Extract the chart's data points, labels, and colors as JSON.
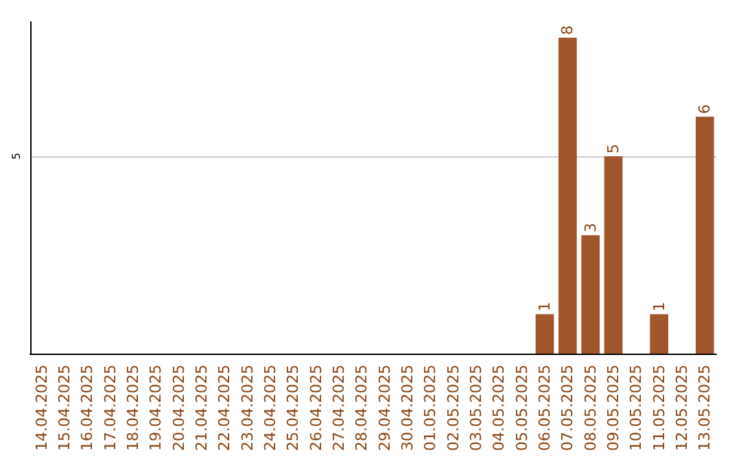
{
  "chart_data": {
    "type": "bar",
    "categories": [
      "14.04.2025",
      "15.04.2025",
      "16.04.2025",
      "17.04.2025",
      "18.04.2025",
      "19.04.2025",
      "20.04.2025",
      "21.04.2025",
      "22.04.2025",
      "23.04.2025",
      "24.04.2025",
      "25.04.2025",
      "26.04.2025",
      "27.04.2025",
      "28.04.2025",
      "29.04.2025",
      "30.04.2025",
      "01.05.2025",
      "02.05.2025",
      "03.05.2025",
      "04.05.2025",
      "05.05.2025",
      "06.05.2025",
      "07.05.2025",
      "08.05.2025",
      "09.05.2025",
      "10.05.2025",
      "11.05.2025",
      "12.05.2025",
      "13.05.2025"
    ],
    "values": [
      null,
      null,
      null,
      null,
      null,
      null,
      null,
      null,
      null,
      null,
      null,
      null,
      null,
      null,
      null,
      null,
      null,
      null,
      null,
      null,
      null,
      null,
      1,
      8,
      3,
      5,
      null,
      1,
      null,
      6
    ],
    "value_labels": [
      null,
      null,
      null,
      null,
      null,
      null,
      null,
      null,
      null,
      null,
      null,
      null,
      null,
      null,
      null,
      null,
      null,
      null,
      null,
      null,
      null,
      null,
      "1",
      "8",
      "3",
      "5",
      null,
      "1",
      null,
      "6"
    ],
    "color": "#a0562c",
    "ylim": [
      0,
      8.4
    ],
    "yticks": [
      5
    ],
    "grid": "y"
  }
}
